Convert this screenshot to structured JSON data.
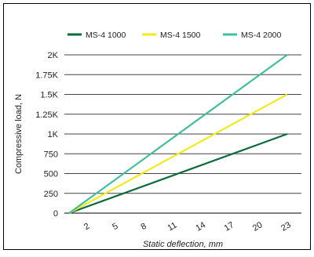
{
  "chart_data": {
    "type": "line",
    "xlabel": "Static deflection, mm",
    "ylabel": "Compressive load, N",
    "x_ticks": [
      2,
      5,
      8,
      11,
      14,
      17,
      20,
      23
    ],
    "x_tick_labels": [
      "2",
      "5",
      "8",
      "11",
      "14",
      "17",
      "20",
      "23"
    ],
    "xlim": [
      -0.5,
      24.5
    ],
    "y_ticks": [
      0,
      250,
      500,
      750,
      1000,
      1250,
      1500,
      1750,
      2000
    ],
    "y_tick_labels": [
      "0",
      "250",
      "500",
      "750",
      "1K",
      "1.25K",
      "1.5K",
      "1.75K",
      "2K"
    ],
    "ylim": [
      0,
      2000
    ],
    "grid": "horizontal",
    "legend_position": "top",
    "series": [
      {
        "name": "MS-4 1000",
        "color": "#0b6b3a",
        "x": [
          0,
          23
        ],
        "y": [
          0,
          1000
        ]
      },
      {
        "name": "MS-4 1500",
        "color": "#f2ea1d",
        "x": [
          0,
          23
        ],
        "y": [
          0,
          1500
        ]
      },
      {
        "name": "MS-4 2000",
        "color": "#3fbf9a",
        "x": [
          0,
          23
        ],
        "y": [
          0,
          2000
        ]
      }
    ]
  }
}
